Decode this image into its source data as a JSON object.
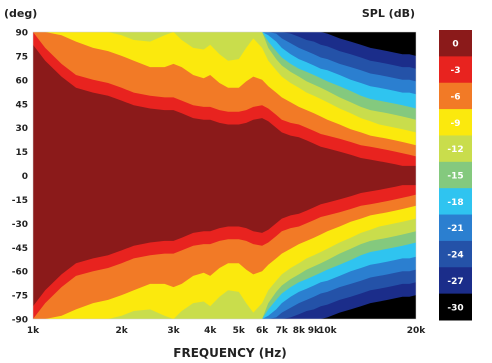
{
  "chart_data": {
    "type": "heatmap",
    "title": "",
    "xlabel": "FREQUENCY (Hz)",
    "ylabel": "(deg)",
    "x_scale": "log",
    "xlim": [
      1000,
      20000
    ],
    "ylim": [
      -90,
      90
    ],
    "x_ticks": [
      {
        "value": 1000,
        "label": "1k"
      },
      {
        "value": 2000,
        "label": "2k"
      },
      {
        "value": 3000,
        "label": "3k"
      },
      {
        "value": 4000,
        "label": "4k"
      },
      {
        "value": 5000,
        "label": "5k"
      },
      {
        "value": 6000,
        "label": "6k"
      },
      {
        "value": 7000,
        "label": "7k"
      },
      {
        "value": 8000,
        "label": "8k"
      },
      {
        "value": 9000,
        "label": "9k"
      },
      {
        "value": 10000,
        "label": "10k"
      },
      {
        "value": 20000,
        "label": "20k"
      }
    ],
    "y_ticks": [
      90,
      75,
      60,
      45,
      30,
      15,
      0,
      -15,
      -30,
      -45,
      -60,
      -75,
      -90
    ],
    "colorbar": {
      "label": "SPL (dB)",
      "levels": [
        {
          "value": 0,
          "label": "0",
          "color": "#8b1a1a"
        },
        {
          "value": -3,
          "label": "-3",
          "color": "#e8231f"
        },
        {
          "value": -6,
          "label": "-6",
          "color": "#f27a26"
        },
        {
          "value": -9,
          "label": "-9",
          "color": "#fbe90d"
        },
        {
          "value": -12,
          "label": "-12",
          "color": "#c9dd4c"
        },
        {
          "value": -15,
          "label": "-15",
          "color": "#84c97e"
        },
        {
          "value": -18,
          "label": "-18",
          "color": "#2fc4f0"
        },
        {
          "value": -21,
          "label": "-21",
          "color": "#2b7fd0"
        },
        {
          "value": -24,
          "label": "-24",
          "color": "#2452a8"
        },
        {
          "value": -27,
          "label": "-27",
          "color": "#1b2d8a"
        },
        {
          "value": -30,
          "label": "-30",
          "color": "#000000"
        }
      ]
    },
    "contours_half_angle_deg": {
      "frequencies_hz": [
        1000,
        1100,
        1250,
        1400,
        1600,
        1800,
        2000,
        2200,
        2500,
        2800,
        3000,
        3200,
        3500,
        3800,
        4000,
        4300,
        4600,
        5000,
        5300,
        5600,
        6000,
        6300,
        6700,
        7000,
        7500,
        8000,
        8500,
        9000,
        9500,
        10000,
        11000,
        12000,
        13000,
        14000,
        15000,
        16000,
        17000,
        18000,
        19000,
        20000
      ],
      "minus_3dB": [
        90,
        80,
        70,
        63,
        60,
        58,
        55,
        52,
        50,
        49,
        49,
        47,
        44,
        43,
        43,
        41,
        40,
        40,
        41,
        43,
        44,
        42,
        38,
        35,
        33,
        32,
        30,
        28,
        26,
        25,
        23,
        21,
        19,
        18,
        17,
        16,
        15,
        14,
        13,
        12
      ],
      "minus_6dB": [
        90,
        90,
        88,
        84,
        80,
        78,
        75,
        72,
        68,
        68,
        70,
        68,
        63,
        61,
        63,
        58,
        55,
        55,
        59,
        62,
        60,
        56,
        52,
        49,
        46,
        43,
        41,
        39,
        37,
        35,
        32,
        29,
        27,
        25,
        24,
        23,
        22,
        21,
        20,
        19
      ],
      "minus_9dB": [
        90,
        90,
        90,
        90,
        90,
        90,
        88,
        85,
        84,
        88,
        90,
        85,
        80,
        79,
        82,
        76,
        72,
        73,
        80,
        86,
        80,
        72,
        66,
        62,
        58,
        55,
        52,
        50,
        48,
        46,
        42,
        39,
        36,
        34,
        32,
        31,
        30,
        29,
        28,
        27
      ],
      "minus_12dB": [
        90,
        90,
        90,
        90,
        90,
        90,
        90,
        90,
        90,
        90,
        90,
        90,
        90,
        90,
        90,
        90,
        90,
        90,
        90,
        90,
        90,
        80,
        73,
        69,
        65,
        62,
        59,
        57,
        55,
        53,
        49,
        46,
        43,
        41,
        40,
        39,
        38,
        37,
        36,
        35
      ],
      "minus_15dB": [
        90,
        90,
        90,
        90,
        90,
        90,
        90,
        90,
        90,
        90,
        90,
        90,
        90,
        90,
        90,
        90,
        90,
        90,
        90,
        90,
        90,
        84,
        78,
        74,
        70,
        67,
        65,
        63,
        61,
        59,
        56,
        53,
        50,
        48,
        47,
        46,
        45,
        44,
        43,
        42
      ],
      "minus_18dB": [
        90,
        90,
        90,
        90,
        90,
        90,
        90,
        90,
        90,
        90,
        90,
        90,
        90,
        90,
        90,
        90,
        90,
        90,
        90,
        90,
        90,
        88,
        84,
        80,
        76,
        73,
        71,
        69,
        67,
        66,
        63,
        60,
        58,
        56,
        55,
        54,
        53,
        52,
        52,
        51
      ],
      "minus_21dB": [
        90,
        90,
        90,
        90,
        90,
        90,
        90,
        90,
        90,
        90,
        90,
        90,
        90,
        90,
        90,
        90,
        90,
        90,
        90,
        90,
        90,
        90,
        89,
        86,
        83,
        80,
        78,
        76,
        74,
        73,
        70,
        68,
        66,
        64,
        63,
        62,
        61,
        60,
        60,
        59
      ],
      "minus_24dB": [
        90,
        90,
        90,
        90,
        90,
        90,
        90,
        90,
        90,
        90,
        90,
        90,
        90,
        90,
        90,
        90,
        90,
        90,
        90,
        90,
        90,
        90,
        90,
        90,
        89,
        87,
        85,
        84,
        82,
        81,
        78,
        76,
        74,
        72,
        71,
        70,
        69,
        68,
        68,
        67
      ],
      "minus_27dB": [
        90,
        90,
        90,
        90,
        90,
        90,
        90,
        90,
        90,
        90,
        90,
        90,
        90,
        90,
        90,
        90,
        90,
        90,
        90,
        90,
        90,
        90,
        90,
        90,
        90,
        90,
        90,
        90,
        90,
        89,
        86,
        84,
        82,
        80,
        79,
        78,
        77,
        76,
        76,
        75
      ],
      "minus_30dB": [
        90,
        90,
        90,
        90,
        90,
        90,
        90,
        90,
        90,
        90,
        90,
        90,
        90,
        90,
        90,
        90,
        90,
        90,
        90,
        90,
        90,
        90,
        90,
        90,
        90,
        90,
        90,
        90,
        90,
        90,
        90,
        89,
        87,
        86,
        85,
        84,
        83,
        82,
        82,
        81
      ]
    }
  }
}
